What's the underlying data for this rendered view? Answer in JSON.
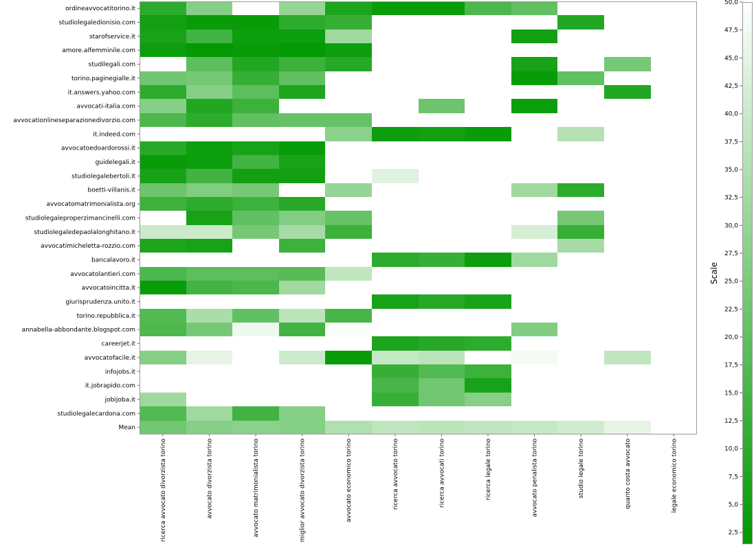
{
  "chart_data": {
    "type": "heatmap",
    "rows": [
      "ordineavvocatitorino.it",
      "studiolegaledionisio.com",
      "starofservice.it",
      "amore.alfemminile.com",
      "studilegali.com",
      "torino.paginegialle.it",
      "it.answers.yahoo.com",
      "avvocati-italia.com",
      "avvocationlineseparazionedivorzio.com",
      "it.indeed.com",
      "avvocatoedoardorossi.it",
      "guidelegali.it",
      "studiolegalebertoli.it",
      "boetti-villanis.it",
      "avvocatomatrimonialista.org",
      "studiolegaleproperzimancinelli.com",
      "studiolegaledepaolalonghitano.it",
      "avvocatimicheletta-rozzio.com",
      "bancalavoro.it",
      "avvocatolantieri.com",
      "avvocatoincitta.it",
      "giurisprudenza.unito.it",
      "torino.repubblica.it",
      "annabella-abbondante.blogspot.com",
      "careerjet.it",
      "avvocatofacile.it",
      "infojobs.it",
      "it.jobrapido.com",
      "jobijoba.it",
      "studiolegalecardona.com",
      "Mean"
    ],
    "columns": [
      "ricerca avvocato divorzista torino",
      "avvocato divorzista torino",
      "avvocato matrimonialista torino",
      "miglior avvocato divorzista torino",
      "avvocato economico torino",
      "ricerca avvocato torino",
      "ricerca avvocati torino",
      "ricerca legale torino",
      "avvocato penalista torino",
      "studio legale torino",
      "quanto costa avvocato",
      "legale economico torino"
    ],
    "values": [
      [
        10,
        27,
        null,
        30,
        7,
        3,
        3,
        16,
        20,
        null,
        null,
        null
      ],
      [
        5,
        3,
        3,
        10,
        12,
        null,
        null,
        null,
        null,
        8,
        null,
        null
      ],
      [
        6,
        14,
        4,
        4,
        32,
        null,
        null,
        null,
        5,
        null,
        null,
        null
      ],
      [
        4,
        2,
        3,
        2,
        4,
        null,
        null,
        null,
        null,
        null,
        null,
        null
      ],
      [
        null,
        19,
        8,
        13,
        9,
        null,
        null,
        null,
        6,
        null,
        24,
        null
      ],
      [
        23,
        24,
        12,
        20,
        null,
        null,
        null,
        null,
        3,
        20,
        null,
        null
      ],
      [
        10,
        27,
        19,
        7,
        null,
        null,
        null,
        null,
        null,
        null,
        8,
        null
      ],
      [
        27,
        8,
        13,
        null,
        null,
        null,
        22,
        null,
        4,
        null,
        null,
        null
      ],
      [
        16,
        10,
        20,
        21,
        21,
        null,
        null,
        null,
        null,
        null,
        null,
        null
      ],
      [
        null,
        null,
        null,
        null,
        28,
        4,
        5,
        3,
        null,
        36,
        null,
        null
      ],
      [
        9,
        4,
        6,
        3,
        null,
        null,
        null,
        null,
        null,
        null,
        null,
        null
      ],
      [
        3,
        4,
        14,
        6,
        null,
        null,
        null,
        null,
        null,
        null,
        null,
        null
      ],
      [
        6,
        14,
        5,
        5,
        null,
        44,
        null,
        null,
        null,
        null,
        null,
        null
      ],
      [
        22,
        26,
        24,
        null,
        30,
        null,
        null,
        null,
        32,
        10,
        null,
        null
      ],
      [
        13,
        10,
        13,
        9,
        null,
        null,
        null,
        null,
        null,
        null,
        null,
        null
      ],
      [
        null,
        6,
        20,
        26,
        21,
        null,
        null,
        null,
        null,
        24,
        null,
        null
      ],
      [
        40,
        40,
        24,
        33,
        13,
        null,
        null,
        null,
        42,
        12,
        null,
        null
      ],
      [
        7,
        6,
        null,
        13,
        null,
        null,
        null,
        null,
        null,
        33,
        null,
        null
      ],
      [
        null,
        null,
        null,
        null,
        null,
        10,
        12,
        4,
        32,
        null,
        null,
        null
      ],
      [
        16,
        19,
        19,
        18,
        38,
        null,
        null,
        null,
        null,
        null,
        null,
        null
      ],
      [
        3,
        14,
        16,
        32,
        null,
        null,
        null,
        null,
        null,
        null,
        null,
        null
      ],
      [
        null,
        null,
        null,
        null,
        null,
        6,
        9,
        6,
        null,
        null,
        null,
        null
      ],
      [
        17,
        34,
        20,
        37,
        15,
        null,
        null,
        null,
        null,
        null,
        null,
        null
      ],
      [
        16,
        24,
        47,
        14,
        49,
        null,
        null,
        null,
        26,
        null,
        null,
        null
      ],
      [
        null,
        null,
        null,
        null,
        null,
        7,
        9,
        10,
        null,
        null,
        null,
        null
      ],
      [
        27,
        45,
        null,
        40,
        3,
        39,
        37,
        null,
        48,
        null,
        38,
        null
      ],
      [
        null,
        null,
        null,
        null,
        null,
        12,
        17,
        13,
        null,
        null,
        null,
        null
      ],
      [
        null,
        null,
        null,
        null,
        null,
        15,
        23,
        6,
        null,
        null,
        null,
        null
      ],
      [
        32,
        null,
        null,
        null,
        null,
        12,
        23,
        27,
        null,
        null,
        null,
        null
      ],
      [
        17,
        32,
        14,
        27,
        null,
        null,
        null,
        null,
        null,
        null,
        null,
        null
      ],
      [
        23,
        27,
        28,
        27,
        35,
        38,
        37,
        38,
        39,
        41,
        45,
        null
      ]
    ],
    "colorbar": {
      "label": "Scale",
      "min": 1.5,
      "max": 50,
      "ticks": [
        "2,5",
        "5,0",
        "7,5",
        "10,0",
        "12,5",
        "15,0",
        "17,5",
        "20,0",
        "22,5",
        "25,0",
        "27,5",
        "30,0",
        "32,5",
        "35,0",
        "37,5",
        "40,0",
        "42,5",
        "45,0",
        "47,5",
        "50,0"
      ],
      "tick_values": [
        2.5,
        5,
        7.5,
        10,
        12.5,
        15,
        17.5,
        20,
        22.5,
        25,
        27.5,
        30,
        32.5,
        35,
        37.5,
        40,
        42.5,
        45,
        47.5,
        50
      ],
      "low_color": "#009900",
      "high_color": "#ffffff"
    },
    "grid": false
  }
}
